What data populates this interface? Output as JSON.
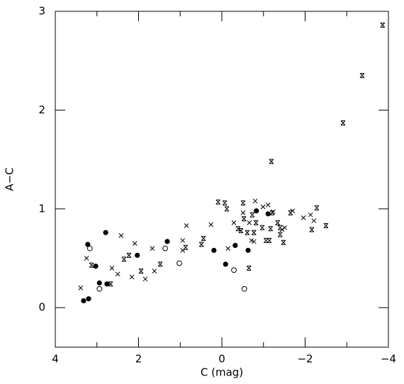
{
  "chart_data": {
    "type": "scatter",
    "xlabel": "C (mag)",
    "ylabel": "A−C",
    "xlim": [
      4,
      -4
    ],
    "ylim": [
      -0.4,
      3
    ],
    "xticks": [
      4,
      2,
      0,
      {
        "value": -2,
        "label": "−2"
      },
      {
        "value": -4,
        "label": "−4"
      }
    ],
    "xminorticks": [
      3,
      1,
      -1,
      -3
    ],
    "yticks": [
      0,
      1,
      2,
      3
    ],
    "series": [
      {
        "marker": "filled-circle",
        "color": "#000000",
        "x": [
          3.32,
          3.2,
          3.22,
          3.03,
          2.94,
          2.79,
          2.76,
          2.03,
          1.31,
          0.19,
          -0.09,
          -0.32,
          -0.63,
          -0.83,
          -1.11
        ],
        "values": [
          0.07,
          0.09,
          0.64,
          0.42,
          0.25,
          0.76,
          0.24,
          0.53,
          0.67,
          0.58,
          0.44,
          0.63,
          0.58,
          0.98,
          0.95
        ]
      },
      {
        "marker": "open-circle",
        "color": "#000000",
        "x": [
          3.17,
          2.94,
          1.36,
          1.02,
          -0.29,
          -0.54
        ],
        "values": [
          0.6,
          0.19,
          0.6,
          0.45,
          0.38,
          0.19
        ]
      },
      {
        "marker": "cross",
        "color": "#000000",
        "x": [
          3.39,
          3.25,
          2.64,
          2.5,
          2.42,
          2.16,
          2.09,
          1.84,
          1.67,
          1.62,
          0.94,
          0.94,
          0.85,
          0.26,
          -0.15,
          -0.29,
          -0.51,
          -0.66,
          -0.71,
          -0.77,
          -0.8,
          -0.99,
          -1.11,
          -1.23,
          -1.45,
          -1.51,
          -1.7,
          -1.96,
          -2.13,
          -2.21
        ],
        "values": [
          0.2,
          0.5,
          0.4,
          0.34,
          0.73,
          0.31,
          0.65,
          0.29,
          0.6,
          0.37,
          0.58,
          0.68,
          0.83,
          0.84,
          0.6,
          0.86,
          0.96,
          0.86,
          0.68,
          0.67,
          1.08,
          1.02,
          1.04,
          0.97,
          0.79,
          0.81,
          0.98,
          0.91,
          0.94,
          0.88
        ]
      },
      {
        "marker": "barred-cross",
        "color": "#000000",
        "x": [
          3.13,
          2.67,
          2.35,
          2.23,
          1.94,
          1.48,
          0.87,
          0.49,
          0.44,
          0.09,
          -0.07,
          -0.12,
          -0.51,
          -0.53,
          -0.39,
          -0.46,
          -0.61,
          -0.65,
          -0.73,
          -0.77,
          -0.82,
          -0.97,
          -1.17,
          -1.06,
          -1.14,
          -1.19,
          -1.21,
          -1.34,
          -1.4,
          -1.4,
          -1.48,
          -1.65,
          -2.16,
          -2.28,
          -2.5,
          -2.91,
          -3.37,
          -3.86
        ],
        "values": [
          0.43,
          0.24,
          0.49,
          0.53,
          0.37,
          0.44,
          0.61,
          0.64,
          0.7,
          1.07,
          1.06,
          1.0,
          1.06,
          0.9,
          0.8,
          0.78,
          0.76,
          0.4,
          0.94,
          0.76,
          0.86,
          0.81,
          0.8,
          0.68,
          0.68,
          1.48,
          0.96,
          0.86,
          0.81,
          0.74,
          0.66,
          0.96,
          0.79,
          1.01,
          0.83,
          1.87,
          2.35,
          2.86
        ]
      }
    ]
  }
}
